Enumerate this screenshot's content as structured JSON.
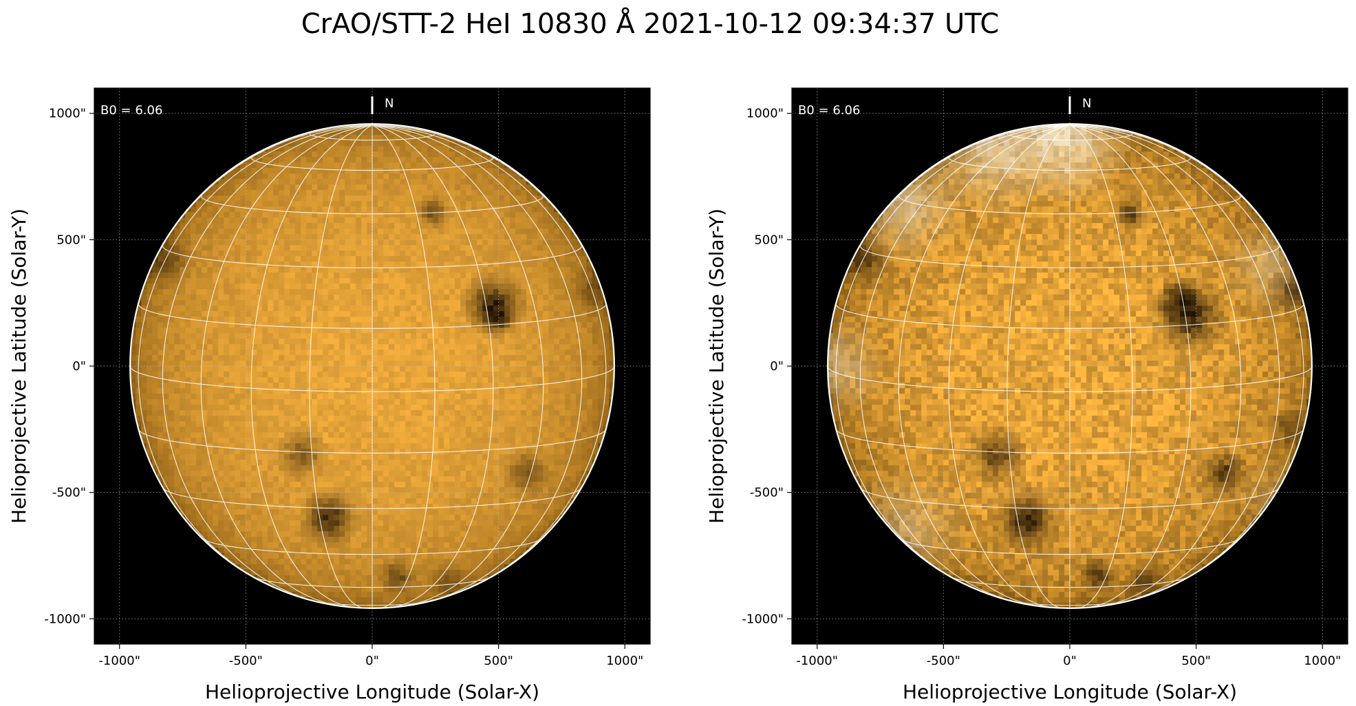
{
  "title": "CrAO/STT-2 HeI 10830 Å 2021-10-12 09:34:37 UTC",
  "colors": {
    "background": "#000000",
    "disk_center": "#e8a63a",
    "disk_limb": "#6e4708",
    "grid": "#ffffff",
    "feature_dark": "#140a00",
    "feature_bright": "#fff4dc"
  },
  "chart_data": [
    {
      "type": "heatmap",
      "panel": "left",
      "xlabel": "Helioprojective Longitude (Solar-X)",
      "ylabel": "Helioprojective Latitude (Solar-Y)",
      "xlim": [
        -1100,
        1100
      ],
      "ylim": [
        -1100,
        1100
      ],
      "x_ticks": [
        "-1000\"",
        "-500\"",
        "0\"",
        "500\"",
        "1000\""
      ],
      "y_ticks": [
        "1000\"",
        "500\"",
        "0\"",
        "-500\"",
        "-1000\""
      ],
      "tick_values": [
        -1000,
        -500,
        0,
        500,
        1000
      ],
      "grid": true,
      "solar_radius_arcsec": 958,
      "b0_label": "B0 = 6.06",
      "north_label": "N",
      "dark_features": [
        {
          "x": 480,
          "y": 240,
          "r": 60,
          "s": 1.0
        },
        {
          "x": 495,
          "y": 190,
          "r": 28,
          "s": 1.0
        },
        {
          "x": -170,
          "y": -600,
          "r": 55,
          "s": 0.9
        },
        {
          "x": -280,
          "y": -350,
          "r": 50,
          "s": 0.55
        },
        {
          "x": 240,
          "y": 610,
          "r": 30,
          "s": 0.7
        },
        {
          "x": 610,
          "y": -420,
          "r": 45,
          "s": 0.55
        },
        {
          "x": -820,
          "y": 420,
          "r": 55,
          "s": 0.55
        },
        {
          "x": 100,
          "y": -830,
          "r": 35,
          "s": 0.6
        },
        {
          "x": 300,
          "y": -850,
          "r": 40,
          "s": 0.45
        },
        {
          "x": 880,
          "y": 300,
          "r": 50,
          "s": 0.45
        }
      ],
      "bright_features": []
    },
    {
      "type": "heatmap",
      "panel": "right",
      "xlabel": "Helioprojective Longitude (Solar-X)",
      "ylabel": "Helioprojective Latitude (Solar-Y)",
      "xlim": [
        -1100,
        1100
      ],
      "ylim": [
        -1100,
        1100
      ],
      "x_ticks": [
        "-1000\"",
        "-500\"",
        "0\"",
        "500\"",
        "1000\""
      ],
      "y_ticks": [
        "1000\"",
        "500\"",
        "0\"",
        "-500\"",
        "-1000\""
      ],
      "tick_values": [
        -1000,
        -500,
        0,
        500,
        1000
      ],
      "grid": true,
      "solar_radius_arcsec": 958,
      "b0_label": "B0 = 6.06",
      "north_label": "N",
      "dark_features": [
        {
          "x": 470,
          "y": 200,
          "r": 70,
          "s": 1.0
        },
        {
          "x": 440,
          "y": 260,
          "r": 40,
          "s": 1.0
        },
        {
          "x": -170,
          "y": -610,
          "r": 60,
          "s": 1.0
        },
        {
          "x": -290,
          "y": -350,
          "r": 55,
          "s": 0.75
        },
        {
          "x": 240,
          "y": 600,
          "r": 30,
          "s": 0.85
        },
        {
          "x": 610,
          "y": -420,
          "r": 45,
          "s": 0.75
        },
        {
          "x": -820,
          "y": 420,
          "r": 50,
          "s": 0.7
        },
        {
          "x": 110,
          "y": -830,
          "r": 35,
          "s": 0.8
        },
        {
          "x": 300,
          "y": -850,
          "r": 40,
          "s": 0.6
        },
        {
          "x": 880,
          "y": 300,
          "r": 45,
          "s": 0.6
        },
        {
          "x": 870,
          "y": -250,
          "r": 40,
          "s": 0.5
        }
      ],
      "bright_features": [
        {
          "x": -30,
          "y": 910,
          "r": 120,
          "s": 1.0
        },
        {
          "x": -300,
          "y": 850,
          "r": 110,
          "s": 0.75
        },
        {
          "x": -650,
          "y": 650,
          "r": 110,
          "s": 0.6
        },
        {
          "x": -930,
          "y": 0,
          "r": 90,
          "s": 0.5
        },
        {
          "x": -650,
          "y": -650,
          "r": 110,
          "s": 0.4
        },
        {
          "x": 800,
          "y": 400,
          "r": 90,
          "s": 0.4
        },
        {
          "x": 850,
          "y": -550,
          "r": 90,
          "s": 0.3
        }
      ]
    }
  ]
}
